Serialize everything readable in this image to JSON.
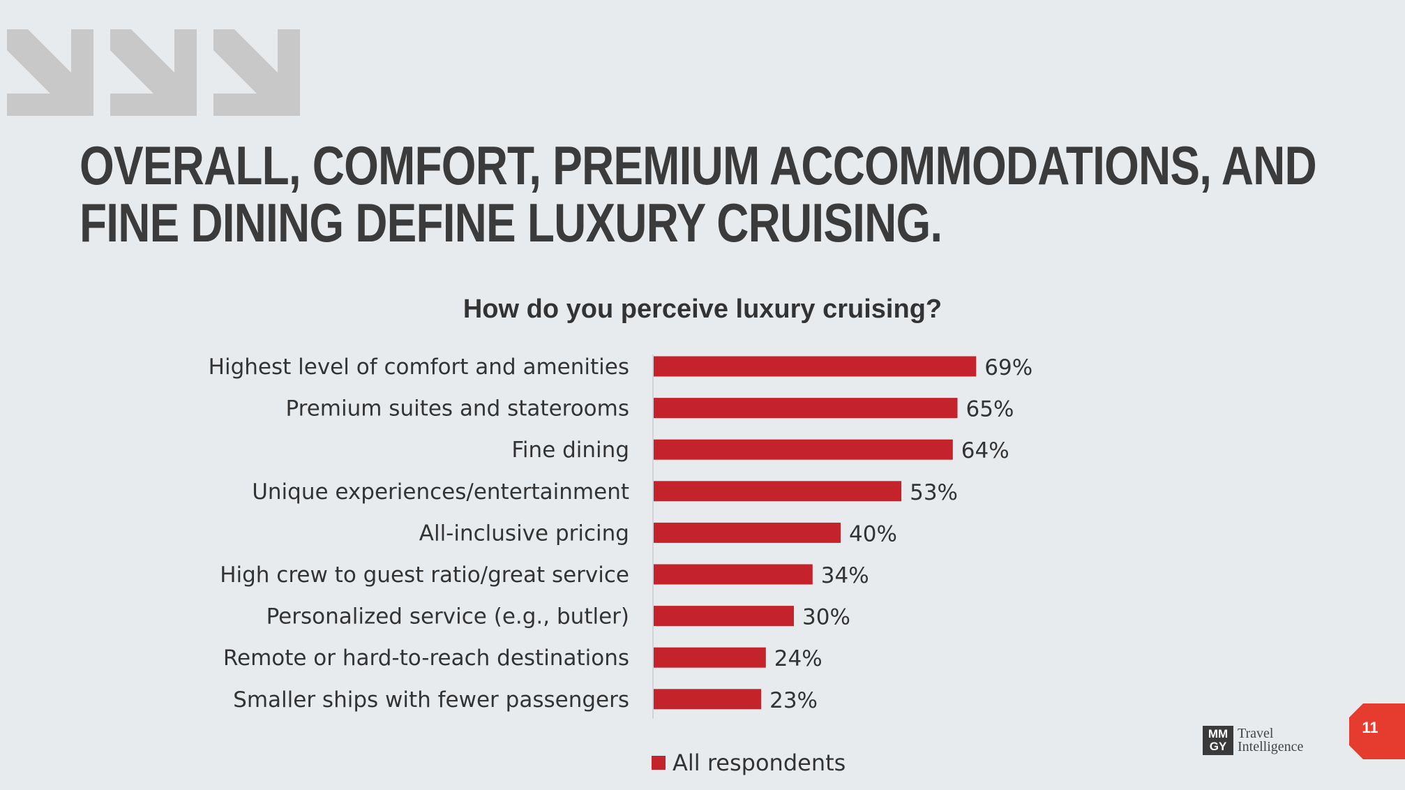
{
  "header": {
    "title_line1": "OVERALL, COMFORT, PREMIUM ACCOMMODATIONS, AND",
    "title_line2": "FINE DINING DEFINE LUXURY CRUISING."
  },
  "chart_data": {
    "type": "bar",
    "orientation": "horizontal",
    "title": "How do you perceive luxury cruising?",
    "categories": [
      "Highest level of comfort and amenities",
      "Premium suites and staterooms",
      "Fine dining",
      "Unique experiences/entertainment",
      "All-inclusive pricing",
      "High crew to guest ratio/great service",
      "Personalized service (e.g., butler)",
      "Remote or hard-to-reach destinations",
      "Smaller ships with fewer passengers"
    ],
    "series": [
      {
        "name": "All respondents",
        "values": [
          69,
          65,
          64,
          53,
          40,
          34,
          30,
          24,
          23
        ],
        "labels": [
          "69%",
          "65%",
          "64%",
          "53%",
          "40%",
          "34%",
          "30%",
          "24%",
          "23%"
        ],
        "color": "#c4232b"
      }
    ],
    "xlim": [
      0,
      100
    ],
    "grid": false,
    "legend": "bottom"
  },
  "legend": {
    "label": "All respondents"
  },
  "logo": {
    "mark_line1": "MM",
    "mark_line2": "GY",
    "text_line1": "Travel",
    "text_line2": "Intelligence"
  },
  "page": {
    "number": "11",
    "badge_color": "#e63c2f"
  },
  "colors": {
    "bar": "#c4232b",
    "arrows": "#c8c8c8",
    "background": "#e8ebee"
  }
}
